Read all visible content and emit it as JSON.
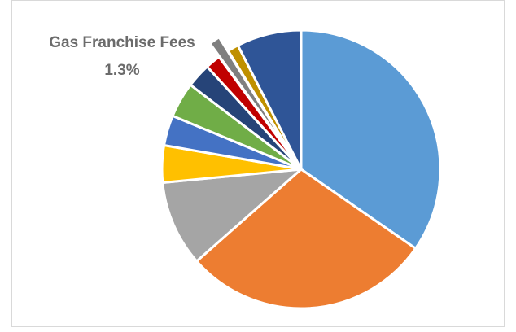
{
  "chart_data": {
    "type": "pie",
    "title": "",
    "legend": "none",
    "exploded_slice": "Gas Franchise Fees",
    "slices": [
      {
        "name": "",
        "percent": 35.5,
        "color": "#5b9bd5"
      },
      {
        "name": "",
        "percent": 29.6,
        "color": "#ed7d31"
      },
      {
        "name": "",
        "percent": 10.2,
        "color": "#a5a5a5"
      },
      {
        "name": "",
        "percent": 4.4,
        "color": "#ffc000"
      },
      {
        "name": "",
        "percent": 3.6,
        "color": "#4472c4"
      },
      {
        "name": "",
        "percent": 4.2,
        "color": "#70ad47"
      },
      {
        "name": "",
        "percent": 2.9,
        "color": "#264478"
      },
      {
        "name": "",
        "percent": 1.8,
        "color": "#c00000"
      },
      {
        "name": "Gas Franchise Fees",
        "percent": 1.3,
        "color": "#7f7f7f"
      },
      {
        "name": "",
        "percent": 1.3,
        "color": "#bf9000"
      },
      {
        "name": "",
        "percent": 7.7,
        "color": "#2f5597"
      }
    ]
  },
  "callout": {
    "line1": "Gas Franchise Fees",
    "line2": "1.3%"
  }
}
